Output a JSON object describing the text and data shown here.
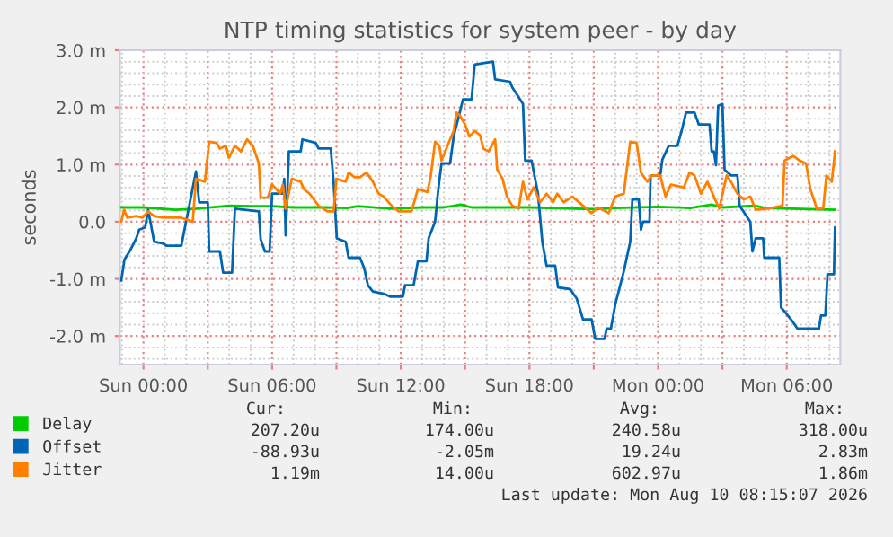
{
  "chart_data": {
    "type": "line",
    "title": "NTP timing statistics for system peer - by day",
    "ylabel": "seconds",
    "xlim": [
      "2026-08-08T22:54",
      "2026-08-10T08:30"
    ],
    "xticks": [
      {
        "value": "2026-08-09T00:00",
        "label": "Sun 00:00"
      },
      {
        "value": "2026-08-09T03:00",
        "label": null
      },
      {
        "value": "2026-08-09T06:00",
        "label": "Sun 06:00"
      },
      {
        "value": "2026-08-09T09:00",
        "label": null
      },
      {
        "value": "2026-08-09T12:00",
        "label": "Sun 12:00"
      },
      {
        "value": "2026-08-09T15:00",
        "label": null
      },
      {
        "value": "2026-08-09T18:00",
        "label": "Sun 18:00"
      },
      {
        "value": "2026-08-09T21:00",
        "label": null
      },
      {
        "value": "2026-08-10T00:00",
        "label": "Mon 00:00"
      },
      {
        "value": "2026-08-10T03:00",
        "label": null
      },
      {
        "value": "2026-08-10T06:00",
        "label": "Mon 06:00"
      }
    ],
    "ylim": [
      -2.5,
      3
    ],
    "yticks": [
      {
        "value": 3,
        "label": "3.0 m"
      },
      {
        "value": 2,
        "label": "2.0 m"
      },
      {
        "value": 1,
        "label": "1.0 m"
      },
      {
        "value": 0,
        "label": "0.0"
      },
      {
        "value": -1,
        "label": "-1.0 m"
      },
      {
        "value": -2,
        "label": "-2.0 m"
      }
    ],
    "grid": true,
    "legend": "bottom",
    "marker": "none",
    "line_style": "solid",
    "series": [
      {
        "name": "Delay",
        "color": "#00cc00",
        "x": [
          "2026-08-08T22:58",
          "2026-08-09T00:00",
          "2026-08-09T01:30",
          "2026-08-09T02:30",
          "2026-08-09T04:00",
          "2026-08-09T05:00",
          "2026-08-09T06:00",
          "2026-08-09T07:00",
          "2026-08-09T08:30",
          "2026-08-09T09:30",
          "2026-08-09T10:00",
          "2026-08-09T11:30",
          "2026-08-09T13:00",
          "2026-08-09T14:00",
          "2026-08-09T14:48",
          "2026-08-09T15:18",
          "2026-08-09T18:00",
          "2026-08-09T21:00",
          "2026-08-09T22:00",
          "2026-08-10T00:00",
          "2026-08-10T01:30",
          "2026-08-10T02:30",
          "2026-08-10T03:00",
          "2026-08-10T04:30",
          "2026-08-10T05:00",
          "2026-08-10T08:15"
        ],
        "values": [
          0.25,
          0.25,
          0.21,
          0.23,
          0.28,
          0.27,
          0.27,
          0.25,
          0.25,
          0.24,
          0.27,
          0.23,
          0.25,
          0.25,
          0.3,
          0.25,
          0.25,
          0.22,
          0.24,
          0.26,
          0.24,
          0.3,
          0.25,
          0.28,
          0.24,
          0.21
        ]
      },
      {
        "name": "Offset",
        "color": "#0066b3",
        "x": [
          "2026-08-08T22:58",
          "2026-08-08T23:07",
          "2026-08-08T23:23",
          "2026-08-08T23:40",
          "2026-08-08T23:48",
          "2026-08-09T00:05",
          "2026-08-09T00:13",
          "2026-08-09T00:30",
          "2026-08-09T00:55",
          "2026-08-09T01:04",
          "2026-08-09T01:46",
          "2026-08-09T02:27",
          "2026-08-09T02:36",
          "2026-08-09T03:00",
          "2026-08-09T03:04",
          "2026-08-09T03:34",
          "2026-08-09T03:43",
          "2026-08-09T04:08",
          "2026-08-09T04:16",
          "2026-08-09T05:23",
          "2026-08-09T05:28",
          "2026-08-09T05:40",
          "2026-08-09T05:53",
          "2026-08-09T06:00",
          "2026-08-09T06:30",
          "2026-08-09T06:34",
          "2026-08-09T06:38",
          "2026-08-09T06:47",
          "2026-08-09T07:20",
          "2026-08-09T07:25",
          "2026-08-09T08:02",
          "2026-08-09T08:10",
          "2026-08-09T08:44",
          "2026-08-09T08:52",
          "2026-08-09T09:01",
          "2026-08-09T09:26",
          "2026-08-09T09:34",
          "2026-08-09T10:06",
          "2026-08-09T10:18",
          "2026-08-09T10:28",
          "2026-08-09T10:42",
          "2026-08-09T11:12",
          "2026-08-09T11:30",
          "2026-08-09T12:06",
          "2026-08-09T12:12",
          "2026-08-09T12:36",
          "2026-08-09T12:48",
          "2026-08-09T13:12",
          "2026-08-09T13:18",
          "2026-08-09T13:36",
          "2026-08-09T13:45",
          "2026-08-09T13:54",
          "2026-08-09T14:18",
          "2026-08-09T14:28",
          "2026-08-09T14:45",
          "2026-08-09T14:54",
          "2026-08-09T15:18",
          "2026-08-09T15:27",
          "2026-08-09T16:18",
          "2026-08-09T16:24",
          "2026-08-09T17:06",
          "2026-08-09T17:12",
          "2026-08-09T17:42",
          "2026-08-09T17:48",
          "2026-08-09T18:06",
          "2026-08-09T18:24",
          "2026-08-09T18:36",
          "2026-08-09T18:48",
          "2026-08-09T19:12",
          "2026-08-09T19:20",
          "2026-08-09T19:54",
          "2026-08-09T20:12",
          "2026-08-09T20:30",
          "2026-08-09T20:54",
          "2026-08-09T21:04",
          "2026-08-09T21:30",
          "2026-08-09T21:36",
          "2026-08-09T21:48",
          "2026-08-09T22:00",
          "2026-08-09T22:24",
          "2026-08-09T22:42",
          "2026-08-09T22:48",
          "2026-08-09T23:06",
          "2026-08-09T23:12",
          "2026-08-09T23:18",
          "2026-08-09T23:36",
          "2026-08-09T23:39",
          "2026-08-10T00:06",
          "2026-08-10T00:12",
          "2026-08-10T00:30",
          "2026-08-10T00:54",
          "2026-08-10T01:06",
          "2026-08-10T01:18",
          "2026-08-10T01:42",
          "2026-08-10T01:54",
          "2026-08-10T02:24",
          "2026-08-10T02:30",
          "2026-08-10T02:36",
          "2026-08-10T02:42",
          "2026-08-10T02:48",
          "2026-08-10T03:00",
          "2026-08-10T03:06",
          "2026-08-10T03:24",
          "2026-08-10T03:42",
          "2026-08-10T03:48",
          "2026-08-10T04:18",
          "2026-08-10T04:24",
          "2026-08-10T04:33",
          "2026-08-10T04:54",
          "2026-08-10T04:57",
          "2026-08-10T05:39",
          "2026-08-10T05:44",
          "2026-08-10T05:54",
          "2026-08-10T06:18",
          "2026-08-10T06:30",
          "2026-08-10T07:30",
          "2026-08-10T07:36",
          "2026-08-10T07:48",
          "2026-08-10T07:54",
          "2026-08-10T08:12",
          "2026-08-10T08:15"
        ],
        "values": [
          -1.03,
          -0.66,
          -0.5,
          -0.29,
          -0.14,
          -0.1,
          0.21,
          -0.35,
          -0.38,
          -0.42,
          -0.42,
          0.88,
          0.34,
          0.34,
          -0.52,
          -0.52,
          -0.89,
          -0.89,
          0.23,
          0.18,
          -0.31,
          -0.52,
          -0.52,
          0.49,
          0.49,
          0.75,
          -0.24,
          1.23,
          1.23,
          1.44,
          1.38,
          1.28,
          1.28,
          0.7,
          -0.29,
          -0.35,
          -0.63,
          -0.63,
          -0.82,
          -1.11,
          -1.22,
          -1.26,
          -1.31,
          -1.31,
          -1.11,
          -1.11,
          -0.69,
          -0.69,
          -0.29,
          0.0,
          0.57,
          1.02,
          1.02,
          1.49,
          1.91,
          2.14,
          2.14,
          2.75,
          2.8,
          2.49,
          2.45,
          2.35,
          2.06,
          1.07,
          1.07,
          0.49,
          -0.35,
          -0.77,
          -0.77,
          -1.15,
          -1.18,
          -1.34,
          -1.71,
          -1.71,
          -2.05,
          -2.05,
          -1.87,
          -1.87,
          -1.45,
          -0.87,
          -0.35,
          0.39,
          0.39,
          -0.14,
          0.0,
          0.0,
          0.81,
          0.81,
          1.09,
          1.33,
          1.33,
          1.59,
          1.91,
          1.91,
          1.7,
          1.7,
          1.23,
          1.23,
          0.99,
          2.03,
          2.06,
          0.91,
          0.81,
          0.81,
          0.28,
          0.0,
          -0.52,
          -0.29,
          -0.29,
          -0.63,
          -0.63,
          -1.5,
          -1.57,
          -1.76,
          -1.87,
          -1.87,
          -1.64,
          -1.64,
          -0.92,
          -0.92,
          -0.1
        ]
      },
      {
        "name": "Jitter",
        "color": "#ff8000",
        "x": [
          "2026-08-08T22:58",
          "2026-08-08T23:06",
          "2026-08-08T23:15",
          "2026-08-08T23:40",
          "2026-08-08T23:57",
          "2026-08-09T00:13",
          "2026-08-09T00:30",
          "2026-08-09T00:55",
          "2026-08-09T01:46",
          "2026-08-09T02:18",
          "2026-08-09T02:27",
          "2026-08-09T02:52",
          "2026-08-09T03:04",
          "2026-08-09T03:24",
          "2026-08-09T03:34",
          "2026-08-09T03:51",
          "2026-08-09T03:59",
          "2026-08-09T04:16",
          "2026-08-09T04:33",
          "2026-08-09T04:50",
          "2026-08-09T05:06",
          "2026-08-09T05:23",
          "2026-08-09T05:28",
          "2026-08-09T05:48",
          "2026-08-09T06:00",
          "2026-08-09T06:12",
          "2026-08-09T06:22",
          "2026-08-09T06:30",
          "2026-08-09T06:38",
          "2026-08-09T06:55",
          "2026-08-09T07:20",
          "2026-08-09T07:29",
          "2026-08-09T07:45",
          "2026-08-09T08:10",
          "2026-08-09T08:36",
          "2026-08-09T08:52",
          "2026-08-09T09:00",
          "2026-08-09T09:26",
          "2026-08-09T09:34",
          "2026-08-09T09:51",
          "2026-08-09T10:06",
          "2026-08-09T10:24",
          "2026-08-09T10:30",
          "2026-08-09T10:42",
          "2026-08-09T10:58",
          "2026-08-09T11:12",
          "2026-08-09T11:30",
          "2026-08-09T11:54",
          "2026-08-09T12:30",
          "2026-08-09T12:48",
          "2026-08-09T13:15",
          "2026-08-09T13:24",
          "2026-08-09T13:36",
          "2026-08-09T13:48",
          "2026-08-09T13:54",
          "2026-08-09T14:18",
          "2026-08-09T14:28",
          "2026-08-09T14:36",
          "2026-08-09T14:45",
          "2026-08-09T15:00",
          "2026-08-09T15:12",
          "2026-08-09T15:27",
          "2026-08-09T15:42",
          "2026-08-09T15:51",
          "2026-08-09T16:06",
          "2026-08-09T16:24",
          "2026-08-09T16:30",
          "2026-08-09T16:45",
          "2026-08-09T16:57",
          "2026-08-09T17:12",
          "2026-08-09T17:30",
          "2026-08-09T17:42",
          "2026-08-09T17:54",
          "2026-08-09T18:12",
          "2026-08-09T18:30",
          "2026-08-09T18:48",
          "2026-08-09T19:06",
          "2026-08-09T19:18",
          "2026-08-09T19:36",
          "2026-08-09T20:00",
          "2026-08-09T20:30",
          "2026-08-09T20:54",
          "2026-08-09T21:12",
          "2026-08-09T21:42",
          "2026-08-09T22:00",
          "2026-08-09T22:24",
          "2026-08-09T22:42",
          "2026-08-09T23:00",
          "2026-08-09T23:12",
          "2026-08-09T23:30",
          "2026-08-09T23:42",
          "2026-08-10T00:06",
          "2026-08-10T00:21",
          "2026-08-10T00:36",
          "2026-08-10T01:12",
          "2026-08-10T01:28",
          "2026-08-10T01:42",
          "2026-08-10T02:00",
          "2026-08-10T02:18",
          "2026-08-10T02:36",
          "2026-08-10T02:51",
          "2026-08-10T03:12",
          "2026-08-10T03:24",
          "2026-08-10T03:42",
          "2026-08-10T04:00",
          "2026-08-10T04:18",
          "2026-08-10T04:33",
          "2026-08-10T05:06",
          "2026-08-10T05:48",
          "2026-08-10T05:54",
          "2026-08-10T06:18",
          "2026-08-10T06:36",
          "2026-08-10T06:54",
          "2026-08-10T07:06",
          "2026-08-10T07:24",
          "2026-08-10T07:42",
          "2026-08-10T07:51",
          "2026-08-10T08:06",
          "2026-08-10T08:15"
        ],
        "values": [
          0.0,
          0.21,
          0.07,
          0.1,
          0.07,
          0.18,
          0.1,
          0.07,
          0.07,
          0.0,
          0.75,
          0.7,
          1.4,
          1.38,
          1.28,
          1.33,
          1.12,
          1.33,
          1.23,
          1.44,
          1.33,
          1.02,
          0.42,
          0.42,
          0.65,
          0.57,
          0.49,
          0.65,
          0.23,
          0.75,
          0.7,
          0.57,
          0.49,
          0.28,
          0.18,
          0.18,
          0.75,
          0.7,
          0.86,
          0.78,
          0.78,
          0.86,
          0.81,
          0.7,
          0.49,
          0.44,
          0.31,
          0.18,
          0.18,
          0.57,
          0.52,
          0.81,
          1.4,
          1.33,
          1.07,
          1.44,
          1.59,
          1.91,
          1.86,
          1.7,
          1.49,
          1.59,
          1.51,
          1.28,
          1.23,
          1.44,
          0.91,
          0.75,
          0.44,
          0.28,
          0.23,
          0.7,
          0.39,
          0.6,
          0.34,
          0.49,
          0.34,
          0.49,
          0.34,
          0.44,
          0.28,
          0.15,
          0.25,
          0.15,
          0.44,
          0.49,
          1.4,
          1.38,
          0.86,
          0.7,
          0.81,
          0.81,
          0.44,
          0.65,
          0.6,
          0.86,
          0.81,
          0.49,
          0.7,
          0.44,
          0.23,
          0.81,
          0.7,
          0.49,
          0.39,
          0.44,
          0.21,
          0.23,
          0.28,
          1.07,
          1.15,
          1.07,
          1.02,
          0.57,
          0.23,
          0.23,
          0.81,
          0.7,
          1.23
        ]
      }
    ],
    "annotations": [
      "Cur:",
      "Min:",
      "Avg:",
      "Max:",
      "207.20u",
      "174.00u",
      "240.58u",
      "318.00u",
      "-88.93u",
      "-2.05m",
      "19.24u",
      "2.83m",
      "1.19m",
      "14.00u",
      "602.97u",
      "1.86m",
      "Last update: Mon Aug 10 08:15:07 2026"
    ]
  }
}
